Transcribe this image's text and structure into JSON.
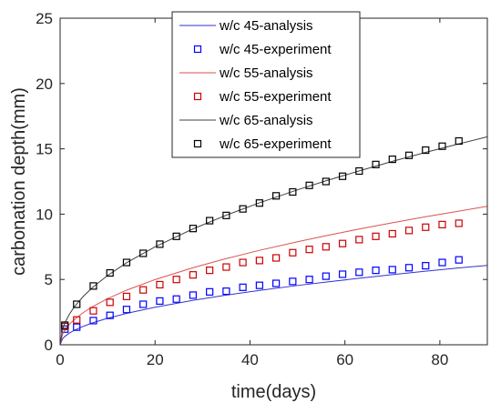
{
  "chart_data": {
    "type": "line",
    "xlabel": "time(days)",
    "ylabel": "carbonation depth(mm)",
    "xlim": [
      0,
      90
    ],
    "ylim": [
      0,
      25
    ],
    "xticks": [
      "0",
      "20",
      "40",
      "60",
      "80"
    ],
    "yticks": [
      "0",
      "5",
      "10",
      "15",
      "20",
      "25"
    ],
    "grid": false,
    "legend_position": "top-center",
    "series": [
      {
        "name": "w/c 45-analysis",
        "kind": "line",
        "color": "#3333cc",
        "x": [
          0,
          0.5,
          1,
          2,
          3,
          5,
          7,
          10,
          14,
          20,
          28,
          35,
          42,
          50,
          56,
          63,
          70,
          77,
          84,
          90
        ],
        "y": [
          0,
          0.45,
          0.64,
          0.91,
          1.11,
          1.43,
          1.7,
          2.03,
          2.4,
          2.87,
          3.4,
          3.8,
          4.16,
          4.54,
          4.8,
          5.09,
          5.37,
          5.63,
          5.88,
          6.08
        ]
      },
      {
        "name": "w/c 45-experiment",
        "kind": "marker",
        "color": "#0000ff",
        "x": [
          1,
          3.5,
          7,
          10.5,
          14,
          17.5,
          21,
          24.5,
          28,
          31.5,
          35,
          38.5,
          42,
          45.5,
          49,
          52.5,
          56,
          59.5,
          63,
          66.5,
          70,
          73.5,
          77,
          80.5,
          84
        ],
        "y": [
          1.2,
          1.35,
          1.85,
          2.25,
          2.7,
          3.1,
          3.35,
          3.5,
          3.8,
          4.05,
          4.1,
          4.4,
          4.55,
          4.7,
          4.85,
          5.0,
          5.25,
          5.4,
          5.55,
          5.7,
          5.75,
          5.9,
          6.05,
          6.3,
          6.5
        ]
      },
      {
        "name": "w/c 55-analysis",
        "kind": "line",
        "color": "#d9534f",
        "x": [
          0,
          0.5,
          1,
          2,
          3,
          5,
          7,
          10,
          14,
          20,
          28,
          35,
          42,
          50,
          56,
          63,
          70,
          77,
          84,
          90
        ],
        "y": [
          0,
          0.8,
          1.12,
          1.58,
          1.93,
          2.5,
          2.95,
          3.53,
          4.18,
          4.99,
          5.9,
          6.6,
          7.23,
          7.89,
          8.35,
          8.86,
          9.34,
          9.8,
          10.23,
          10.6
        ]
      },
      {
        "name": "w/c 55-experiment",
        "kind": "marker",
        "color": "#cc0000",
        "x": [
          1,
          3.5,
          7,
          10.5,
          14,
          17.5,
          21,
          24.5,
          28,
          31.5,
          35,
          38.5,
          42,
          45.5,
          49,
          52.5,
          56,
          59.5,
          63,
          66.5,
          70,
          73.5,
          77,
          80.5,
          84
        ],
        "y": [
          1.4,
          1.9,
          2.6,
          3.25,
          3.7,
          4.2,
          4.6,
          5.0,
          5.35,
          5.7,
          5.95,
          6.3,
          6.45,
          6.65,
          7.05,
          7.3,
          7.5,
          7.75,
          8.05,
          8.3,
          8.5,
          8.75,
          9.0,
          9.2,
          9.3
        ]
      },
      {
        "name": "w/c 65-analysis",
        "kind": "line",
        "color": "#404040",
        "x": [
          0,
          0.5,
          1,
          2,
          3,
          5,
          7,
          10,
          14,
          20,
          28,
          35,
          42,
          50,
          56,
          63,
          70,
          77,
          84,
          90
        ],
        "y": [
          0,
          1.19,
          1.68,
          2.37,
          2.91,
          3.75,
          4.44,
          5.3,
          6.28,
          7.5,
          8.87,
          9.92,
          10.87,
          11.86,
          12.55,
          13.31,
          14.04,
          14.73,
          15.38,
          15.92
        ]
      },
      {
        "name": "w/c 65-experiment",
        "kind": "marker",
        "color": "#000000",
        "x": [
          1,
          3.5,
          7,
          10.5,
          14,
          17.5,
          21,
          24.5,
          28,
          31.5,
          35,
          38.5,
          42,
          45.5,
          49,
          52.5,
          56,
          59.5,
          63,
          66.5,
          70,
          73.5,
          77,
          80.5,
          84
        ],
        "y": [
          1.5,
          3.1,
          4.5,
          5.5,
          6.3,
          7.0,
          7.7,
          8.3,
          8.9,
          9.5,
          9.9,
          10.4,
          10.85,
          11.4,
          11.7,
          12.2,
          12.5,
          12.9,
          13.3,
          13.8,
          14.2,
          14.5,
          14.9,
          15.2,
          15.6
        ]
      }
    ]
  }
}
